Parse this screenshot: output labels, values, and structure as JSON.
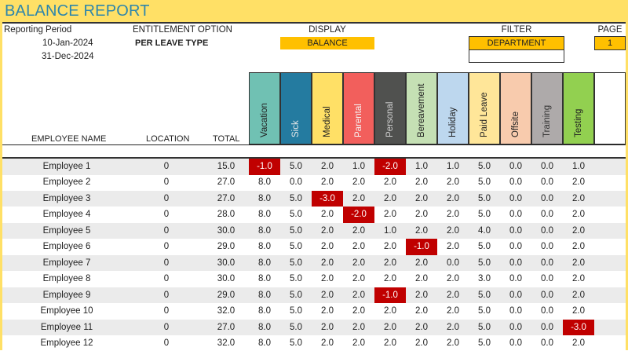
{
  "title": "BALANCE REPORT",
  "reporting_period": {
    "label": "Reporting Period",
    "start": "10-Jan-2024",
    "end": "31-Dec-2024"
  },
  "entitlement": {
    "label": "ENTITLEMENT OPTION",
    "value": "PER LEAVE TYPE"
  },
  "display": {
    "label": "DISPLAY",
    "value": "BALANCE"
  },
  "filter": {
    "label": "FILTER",
    "value": "DEPARTMENT",
    "sub_value": ""
  },
  "page": {
    "label": "PAGE",
    "value": "1"
  },
  "columns": {
    "name": "EMPLOYEE NAME",
    "location": "LOCATION",
    "total": "TOTAL"
  },
  "leave_types": [
    {
      "label": "Vacation",
      "color": "#70C1B3",
      "text": "#222222"
    },
    {
      "label": "Sick",
      "color": "#247BA0",
      "text": "#E8E8E8"
    },
    {
      "label": "Medical",
      "color": "#FFE066",
      "text": "#222222"
    },
    {
      "label": "Parental",
      "color": "#F25F5C",
      "text": "#F5F5F5"
    },
    {
      "label": "Personal",
      "color": "#50514F",
      "text": "#D0D0D0"
    },
    {
      "label": "Bereavement",
      "color": "#C5E0B4",
      "text": "#222222"
    },
    {
      "label": "Holiday",
      "color": "#BDD7EE",
      "text": "#222222"
    },
    {
      "label": "Paid Leave",
      "color": "#FFE699",
      "text": "#222222"
    },
    {
      "label": "Offsite",
      "color": "#F8CBAD",
      "text": "#222222"
    },
    {
      "label": "Training",
      "color": "#AEAAAA",
      "text": "#333333"
    },
    {
      "label": "Testing",
      "color": "#92D050",
      "text": "#222222"
    },
    {
      "label": "",
      "color": "#FFFFFF",
      "text": "#222222"
    }
  ],
  "negative_color": "#C00000",
  "rows": [
    {
      "name": "Employee 1",
      "location": "0",
      "total": "15.0",
      "values": [
        "-1.0",
        "5.0",
        "2.0",
        "1.0",
        "-2.0",
        "1.0",
        "1.0",
        "5.0",
        "0.0",
        "0.0",
        "1.0"
      ]
    },
    {
      "name": "Employee 2",
      "location": "0",
      "total": "27.0",
      "values": [
        "8.0",
        "0.0",
        "2.0",
        "2.0",
        "2.0",
        "2.0",
        "2.0",
        "5.0",
        "0.0",
        "0.0",
        "2.0"
      ]
    },
    {
      "name": "Employee 3",
      "location": "0",
      "total": "27.0",
      "values": [
        "8.0",
        "5.0",
        "-3.0",
        "2.0",
        "2.0",
        "2.0",
        "2.0",
        "5.0",
        "0.0",
        "0.0",
        "2.0"
      ]
    },
    {
      "name": "Employee 4",
      "location": "0",
      "total": "28.0",
      "values": [
        "8.0",
        "5.0",
        "2.0",
        "-2.0",
        "2.0",
        "2.0",
        "2.0",
        "5.0",
        "0.0",
        "0.0",
        "2.0"
      ]
    },
    {
      "name": "Employee 5",
      "location": "0",
      "total": "30.0",
      "values": [
        "8.0",
        "5.0",
        "2.0",
        "2.0",
        "1.0",
        "2.0",
        "2.0",
        "4.0",
        "0.0",
        "0.0",
        "2.0"
      ]
    },
    {
      "name": "Employee 6",
      "location": "0",
      "total": "29.0",
      "values": [
        "8.0",
        "5.0",
        "2.0",
        "2.0",
        "2.0",
        "-1.0",
        "2.0",
        "5.0",
        "0.0",
        "0.0",
        "2.0"
      ]
    },
    {
      "name": "Employee 7",
      "location": "0",
      "total": "30.0",
      "values": [
        "8.0",
        "5.0",
        "2.0",
        "2.0",
        "2.0",
        "2.0",
        "0.0",
        "5.0",
        "0.0",
        "0.0",
        "2.0"
      ]
    },
    {
      "name": "Employee 8",
      "location": "0",
      "total": "30.0",
      "values": [
        "8.0",
        "5.0",
        "2.0",
        "2.0",
        "2.0",
        "2.0",
        "2.0",
        "3.0",
        "0.0",
        "0.0",
        "2.0"
      ]
    },
    {
      "name": "Employee 9",
      "location": "0",
      "total": "29.0",
      "values": [
        "8.0",
        "5.0",
        "2.0",
        "2.0",
        "-1.0",
        "2.0",
        "2.0",
        "5.0",
        "0.0",
        "0.0",
        "2.0"
      ]
    },
    {
      "name": "Employee 10",
      "location": "0",
      "total": "32.0",
      "values": [
        "8.0",
        "5.0",
        "2.0",
        "2.0",
        "2.0",
        "2.0",
        "2.0",
        "5.0",
        "0.0",
        "0.0",
        "2.0"
      ]
    },
    {
      "name": "Employee 11",
      "location": "0",
      "total": "27.0",
      "values": [
        "8.0",
        "5.0",
        "2.0",
        "2.0",
        "2.0",
        "2.0",
        "2.0",
        "5.0",
        "0.0",
        "0.0",
        "-3.0"
      ]
    },
    {
      "name": "Employee 12",
      "location": "0",
      "total": "32.0",
      "values": [
        "8.0",
        "5.0",
        "2.0",
        "2.0",
        "2.0",
        "2.0",
        "2.0",
        "5.0",
        "0.0",
        "0.0",
        "2.0"
      ]
    }
  ]
}
